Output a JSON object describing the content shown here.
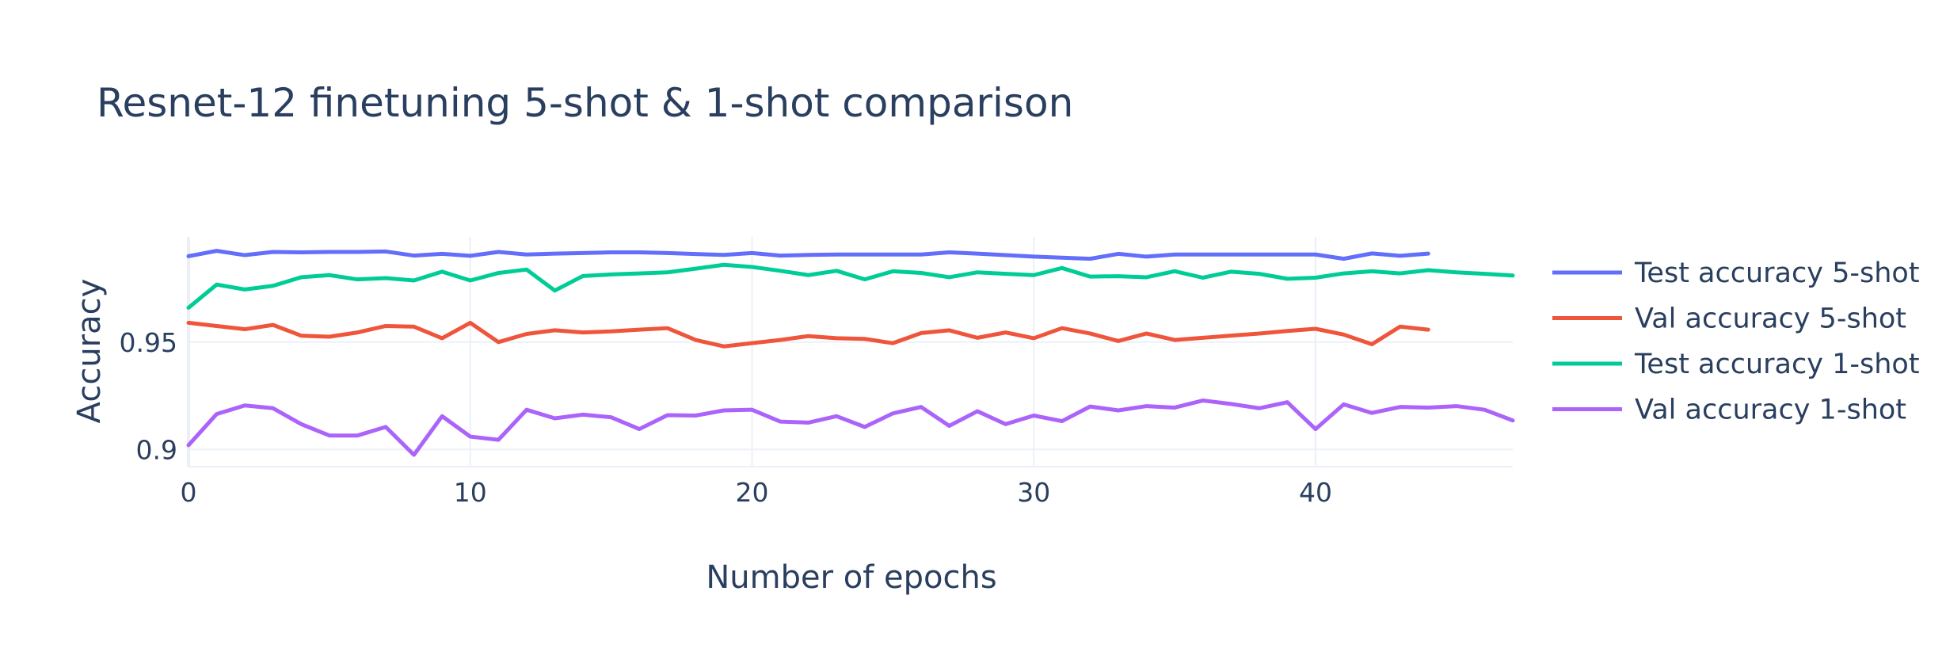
{
  "chart_data": {
    "type": "line",
    "title": "Resnet-12 finetuning 5-shot & 1-shot comparison",
    "xlabel": "Number of epochs",
    "ylabel": "Accuracy",
    "xlim": [
      0,
      47
    ],
    "ylim": [
      0.892,
      0.999
    ],
    "x_ticks": [
      0,
      10,
      20,
      30,
      40
    ],
    "x_tick_labels": [
      "0",
      "10",
      "20",
      "30",
      "40"
    ],
    "y_ticks": [
      0.9,
      0.95
    ],
    "y_tick_labels": [
      "0.9",
      "0.95"
    ],
    "grid": true,
    "legend_position": "right",
    "series": [
      {
        "name": "Test accuracy 5-shot",
        "color": "#636efa",
        "x": [
          0,
          1,
          2,
          3,
          4,
          5,
          6,
          7,
          8,
          9,
          10,
          11,
          12,
          13,
          14,
          15,
          16,
          17,
          18,
          19,
          20,
          21,
          22,
          23,
          24,
          25,
          26,
          27,
          28,
          29,
          30,
          31,
          32,
          33,
          34,
          35,
          36,
          37,
          38,
          39,
          40,
          41,
          42,
          43,
          44
        ],
        "values": [
          0.99,
          0.9925,
          0.9905,
          0.992,
          0.9918,
          0.992,
          0.992,
          0.9922,
          0.9903,
          0.9911,
          0.9902,
          0.992,
          0.9908,
          0.9912,
          0.9915,
          0.9918,
          0.9918,
          0.9915,
          0.991,
          0.9906,
          0.9915,
          0.9903,
          0.9906,
          0.9908,
          0.9908,
          0.9908,
          0.9908,
          0.9918,
          0.9912,
          0.9905,
          0.9898,
          0.9893,
          0.9888,
          0.9911,
          0.9898,
          0.9908,
          0.9908,
          0.9908,
          0.9908,
          0.9908,
          0.9908,
          0.9888,
          0.9913,
          0.9902,
          0.9912
        ]
      },
      {
        "name": "Val accuracy 5-shot",
        "color": "#ef553b",
        "x": [
          0,
          1,
          2,
          3,
          4,
          5,
          6,
          7,
          8,
          9,
          10,
          11,
          12,
          13,
          14,
          15,
          16,
          17,
          18,
          19,
          20,
          21,
          22,
          23,
          24,
          25,
          26,
          27,
          28,
          29,
          30,
          31,
          32,
          33,
          34,
          35,
          36,
          37,
          38,
          39,
          40,
          41,
          42,
          43,
          44
        ],
        "values": [
          0.959,
          0.9575,
          0.956,
          0.958,
          0.953,
          0.9525,
          0.9545,
          0.9575,
          0.9572,
          0.9518,
          0.959,
          0.95,
          0.9538,
          0.9555,
          0.9545,
          0.955,
          0.9558,
          0.9565,
          0.951,
          0.948,
          0.9495,
          0.951,
          0.9528,
          0.9518,
          0.9515,
          0.9495,
          0.9542,
          0.9555,
          0.952,
          0.9545,
          0.9518,
          0.9565,
          0.954,
          0.9505,
          0.954,
          0.951,
          0.952,
          0.953,
          0.954,
          0.9552,
          0.9562,
          0.9535,
          0.949,
          0.9572,
          0.9558
        ]
      },
      {
        "name": "Test accuracy 1-shot",
        "color": "#00cc96",
        "x": [
          0,
          1,
          2,
          3,
          4,
          5,
          6,
          7,
          8,
          9,
          10,
          11,
          12,
          13,
          14,
          15,
          16,
          17,
          18,
          19,
          20,
          21,
          22,
          23,
          24,
          25,
          26,
          27,
          28,
          29,
          30,
          31,
          32,
          33,
          34,
          35,
          36,
          37,
          38,
          39,
          40,
          41,
          42,
          43,
          44,
          45,
          46,
          47
        ],
        "values": [
          0.966,
          0.9768,
          0.9745,
          0.9762,
          0.9802,
          0.9812,
          0.9792,
          0.9798,
          0.9787,
          0.9828,
          0.9787,
          0.9822,
          0.9838,
          0.974,
          0.9808,
          0.9815,
          0.982,
          0.9825,
          0.9842,
          0.986,
          0.985,
          0.9832,
          0.9812,
          0.9832,
          0.9792,
          0.983,
          0.9822,
          0.9802,
          0.9825,
          0.9818,
          0.9812,
          0.9845,
          0.9805,
          0.9807,
          0.9802,
          0.983,
          0.98,
          0.9828,
          0.9818,
          0.9795,
          0.98,
          0.982,
          0.983,
          0.982,
          0.9835,
          0.9825,
          0.9818,
          0.981
        ]
      },
      {
        "name": "Val accuracy 1-shot",
        "color": "#ab63fa",
        "x": [
          0,
          1,
          2,
          3,
          4,
          5,
          6,
          7,
          8,
          9,
          10,
          11,
          12,
          13,
          14,
          15,
          16,
          17,
          18,
          19,
          20,
          21,
          22,
          23,
          24,
          25,
          26,
          27,
          28,
          29,
          30,
          31,
          32,
          33,
          34,
          35,
          36,
          37,
          38,
          39,
          40,
          41,
          42,
          43,
          44,
          45,
          46,
          47
        ],
        "values": [
          0.902,
          0.9165,
          0.9205,
          0.9192,
          0.9118,
          0.9065,
          0.9065,
          0.9105,
          0.8975,
          0.9155,
          0.906,
          0.9045,
          0.9185,
          0.9145,
          0.9162,
          0.915,
          0.9095,
          0.916,
          0.9158,
          0.9182,
          0.9185,
          0.913,
          0.9125,
          0.9155,
          0.9105,
          0.9168,
          0.9198,
          0.911,
          0.9178,
          0.9118,
          0.9158,
          0.9132,
          0.92,
          0.9182,
          0.9202,
          0.9195,
          0.9228,
          0.9212,
          0.9192,
          0.922,
          0.9095,
          0.921,
          0.917,
          0.9198,
          0.9195,
          0.9202,
          0.9185,
          0.9135
        ]
      }
    ]
  }
}
